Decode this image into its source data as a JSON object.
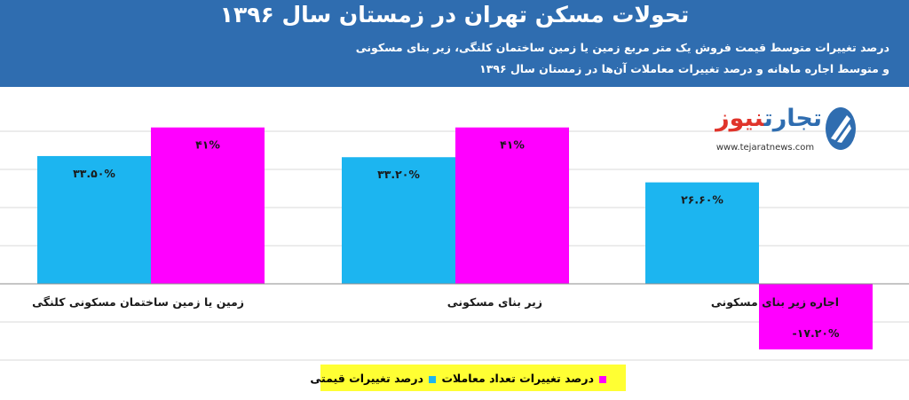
{
  "header": {
    "title": "تحولات مسکن تهران در زمستان سال ۱۳۹۶",
    "subtitle_line1": "درصد تغییرات متوسط قیمت فروش یک متر مربع زمین یا زمین ساختمان کلنگی، زیر بنای مسکونی",
    "subtitle_line2": "و متوسط اجاره ماهانه و درصد تغییرات معاملات آن‌ها در زمستان سال ۱۳۹۶"
  },
  "logo": {
    "name_part1": "تجارت",
    "name_part2": "نیوز",
    "url": "www.tejaratnews.com"
  },
  "chart_data": {
    "type": "bar",
    "categories": [
      "زمین یا زمین ساختمان مسکونی کلنگی",
      "زیر بنای مسکونی",
      "اجاره زیر بنای مسکونی"
    ],
    "series": [
      {
        "name": "درصد تغییرات قیمتی",
        "values": [
          33.5,
          33.2,
          26.6
        ],
        "labels": [
          "۳۳.۵۰%",
          "۳۳.۲۰%",
          "۲۶.۶۰%"
        ],
        "color": "#1cb5f0"
      },
      {
        "name": "درصد تغییرات تعداد معاملات",
        "values": [
          41,
          41,
          -17.2
        ],
        "labels": [
          "۴۱%",
          "۴۱%",
          "-۱۷.۲۰%"
        ],
        "color": "#ff00ff"
      }
    ],
    "ylim": [
      -20,
      45
    ],
    "grid": true,
    "legend_position": "bottom-center"
  }
}
